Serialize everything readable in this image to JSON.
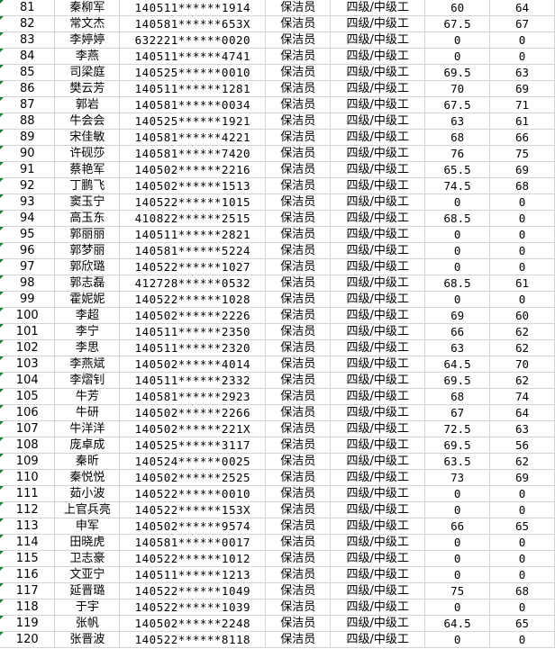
{
  "indicator_color": "#1e7d32",
  "rows": [
    {
      "no": "81",
      "name": "秦柳军",
      "id": "140511******1914",
      "job": "保洁员",
      "level": "四级/中级工",
      "score1": "60",
      "score2": "64"
    },
    {
      "no": "82",
      "name": "常文杰",
      "id": "140581******653X",
      "job": "保洁员",
      "level": "四级/中级工",
      "score1": "67.5",
      "score2": "67"
    },
    {
      "no": "83",
      "name": "李婷婷",
      "id": "632221******0020",
      "job": "保洁员",
      "level": "四级/中级工",
      "score1": "0",
      "score2": "0"
    },
    {
      "no": "84",
      "name": "李燕",
      "id": "140511******4741",
      "job": "保洁员",
      "level": "四级/中级工",
      "score1": "0",
      "score2": "0"
    },
    {
      "no": "85",
      "name": "司梁庭",
      "id": "140525******0010",
      "job": "保洁员",
      "level": "四级/中级工",
      "score1": "69.5",
      "score2": "63"
    },
    {
      "no": "86",
      "name": "樊云芳",
      "id": "140511******1281",
      "job": "保洁员",
      "level": "四级/中级工",
      "score1": "70",
      "score2": "69"
    },
    {
      "no": "87",
      "name": "郭岩",
      "id": "140581******0034",
      "job": "保洁员",
      "level": "四级/中级工",
      "score1": "67.5",
      "score2": "71"
    },
    {
      "no": "88",
      "name": "牛会会",
      "id": "140525******1921",
      "job": "保洁员",
      "level": "四级/中级工",
      "score1": "63",
      "score2": "61"
    },
    {
      "no": "89",
      "name": "宋佳敏",
      "id": "140581******4221",
      "job": "保洁员",
      "level": "四级/中级工",
      "score1": "68",
      "score2": "66"
    },
    {
      "no": "90",
      "name": "许砚莎",
      "id": "140581******7420",
      "job": "保洁员",
      "level": "四级/中级工",
      "score1": "76",
      "score2": "75"
    },
    {
      "no": "91",
      "name": "蔡艳军",
      "id": "140502******2216",
      "job": "保洁员",
      "level": "四级/中级工",
      "score1": "65.5",
      "score2": "69"
    },
    {
      "no": "92",
      "name": "丁鹏飞",
      "id": "140502******1513",
      "job": "保洁员",
      "level": "四级/中级工",
      "score1": "74.5",
      "score2": "68"
    },
    {
      "no": "93",
      "name": "窦玉宁",
      "id": "140522******1015",
      "job": "保洁员",
      "level": "四级/中级工",
      "score1": "0",
      "score2": "0"
    },
    {
      "no": "94",
      "name": "高玉东",
      "id": "410822******2515",
      "job": "保洁员",
      "level": "四级/中级工",
      "score1": "68.5",
      "score2": "0"
    },
    {
      "no": "95",
      "name": "郭丽丽",
      "id": "140511******2821",
      "job": "保洁员",
      "level": "四级/中级工",
      "score1": "0",
      "score2": "0"
    },
    {
      "no": "96",
      "name": "郭梦丽",
      "id": "140581******5224",
      "job": "保洁员",
      "level": "四级/中级工",
      "score1": "0",
      "score2": "0"
    },
    {
      "no": "97",
      "name": "郭欣璐",
      "id": "140522******1027",
      "job": "保洁员",
      "level": "四级/中级工",
      "score1": "0",
      "score2": "0"
    },
    {
      "no": "98",
      "name": "郭志磊",
      "id": "412728******0532",
      "job": "保洁员",
      "level": "四级/中级工",
      "score1": "68.5",
      "score2": "61"
    },
    {
      "no": "99",
      "name": "霍妮妮",
      "id": "140522******1028",
      "job": "保洁员",
      "level": "四级/中级工",
      "score1": "0",
      "score2": "0"
    },
    {
      "no": "100",
      "name": "李超",
      "id": "140502******2226",
      "job": "保洁员",
      "level": "四级/中级工",
      "score1": "69",
      "score2": "60"
    },
    {
      "no": "101",
      "name": "李宁",
      "id": "140511******2350",
      "job": "保洁员",
      "level": "四级/中级工",
      "score1": "66",
      "score2": "62"
    },
    {
      "no": "102",
      "name": "李思",
      "id": "140511******2320",
      "job": "保洁员",
      "level": "四级/中级工",
      "score1": "63",
      "score2": "62"
    },
    {
      "no": "103",
      "name": "李燕斌",
      "id": "140502******4014",
      "job": "保洁员",
      "level": "四级/中级工",
      "score1": "64.5",
      "score2": "70"
    },
    {
      "no": "104",
      "name": "李熠钊",
      "id": "140511******2332",
      "job": "保洁员",
      "level": "四级/中级工",
      "score1": "69.5",
      "score2": "62"
    },
    {
      "no": "105",
      "name": "牛芳",
      "id": "140581******2923",
      "job": "保洁员",
      "level": "四级/中级工",
      "score1": "68",
      "score2": "74"
    },
    {
      "no": "106",
      "name": "牛研",
      "id": "140502******2266",
      "job": "保洁员",
      "level": "四级/中级工",
      "score1": "67",
      "score2": "64"
    },
    {
      "no": "107",
      "name": "牛洋洋",
      "id": "140502******221X",
      "job": "保洁员",
      "level": "四级/中级工",
      "score1": "72.5",
      "score2": "63"
    },
    {
      "no": "108",
      "name": "庞卓成",
      "id": "140525******3117",
      "job": "保洁员",
      "level": "四级/中级工",
      "score1": "69.5",
      "score2": "56"
    },
    {
      "no": "109",
      "name": "秦昕",
      "id": "140524******0025",
      "job": "保洁员",
      "level": "四级/中级工",
      "score1": "63.5",
      "score2": "62"
    },
    {
      "no": "110",
      "name": "秦悦悦",
      "id": "140502******2525",
      "job": "保洁员",
      "level": "四级/中级工",
      "score1": "73",
      "score2": "69"
    },
    {
      "no": "111",
      "name": "茹小波",
      "id": "140522******0010",
      "job": "保洁员",
      "level": "四级/中级工",
      "score1": "0",
      "score2": "0"
    },
    {
      "no": "112",
      "name": "上官兵亮",
      "id": "140522******153X",
      "job": "保洁员",
      "level": "四级/中级工",
      "score1": "0",
      "score2": "0"
    },
    {
      "no": "113",
      "name": "申军",
      "id": "140502******9574",
      "job": "保洁员",
      "level": "四级/中级工",
      "score1": "66",
      "score2": "65"
    },
    {
      "no": "114",
      "name": "田晓虎",
      "id": "140581******0017",
      "job": "保洁员",
      "level": "四级/中级工",
      "score1": "0",
      "score2": "0"
    },
    {
      "no": "115",
      "name": "卫志豪",
      "id": "140522******1012",
      "job": "保洁员",
      "level": "四级/中级工",
      "score1": "0",
      "score2": "0"
    },
    {
      "no": "116",
      "name": "文亚宁",
      "id": "140511******1213",
      "job": "保洁员",
      "level": "四级/中级工",
      "score1": "0",
      "score2": "0"
    },
    {
      "no": "117",
      "name": "延晋璐",
      "id": "140522******1049",
      "job": "保洁员",
      "level": "四级/中级工",
      "score1": "75",
      "score2": "68"
    },
    {
      "no": "118",
      "name": "于宇",
      "id": "140522******1039",
      "job": "保洁员",
      "level": "四级/中级工",
      "score1": "0",
      "score2": "0"
    },
    {
      "no": "119",
      "name": "张帆",
      "id": "140502******2248",
      "job": "保洁员",
      "level": "四级/中级工",
      "score1": "64.5",
      "score2": "65"
    },
    {
      "no": "120",
      "name": "张晋波",
      "id": "140522******8118",
      "job": "保洁员",
      "level": "四级/中级工",
      "score1": "0",
      "score2": "0"
    }
  ]
}
